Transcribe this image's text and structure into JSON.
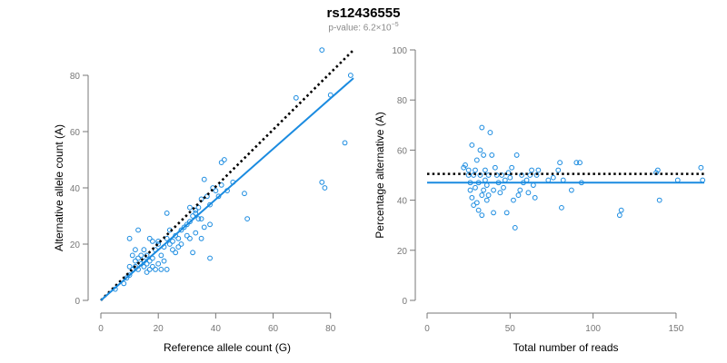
{
  "title": "rs12436555",
  "subtitle": {
    "prefix": "p-value: ",
    "mantissa": "6.2",
    "times": "×10",
    "exponent": "−5"
  },
  "colors": {
    "points": "#1a8be0",
    "fit": "#1a8be0",
    "reference": "#000000",
    "axis": "#777777"
  },
  "chart_data": [
    {
      "type": "scatter",
      "title": "",
      "xlabel": "Reference allele count (G)",
      "ylabel": "Alternative allele count (A)",
      "xlim": [
        0,
        88
      ],
      "ylim": [
        0,
        90
      ],
      "xticks": [
        0,
        20,
        40,
        60,
        80
      ],
      "yticks": [
        0,
        20,
        40,
        60,
        80
      ],
      "fit_line": {
        "label": "fitted",
        "x": [
          0,
          88
        ],
        "y": [
          0,
          79
        ]
      },
      "reference_line": {
        "label": "expected",
        "x": [
          0,
          88
        ],
        "y": [
          0,
          89
        ]
      },
      "points": [
        [
          5,
          4
        ],
        [
          8,
          6
        ],
        [
          9,
          8
        ],
        [
          10,
          9
        ],
        [
          10,
          12
        ],
        [
          11,
          11
        ],
        [
          11,
          16
        ],
        [
          12,
          14
        ],
        [
          12,
          12
        ],
        [
          13,
          15
        ],
        [
          13,
          11
        ],
        [
          14,
          13
        ],
        [
          14,
          16
        ],
        [
          15,
          12
        ],
        [
          15,
          14
        ],
        [
          15,
          18
        ],
        [
          16,
          10
        ],
        [
          16,
          13
        ],
        [
          16,
          16
        ],
        [
          17,
          11
        ],
        [
          17,
          14
        ],
        [
          17,
          22
        ],
        [
          18,
          12
        ],
        [
          18,
          15
        ],
        [
          19,
          18
        ],
        [
          19,
          11
        ],
        [
          20,
          13
        ],
        [
          20,
          20
        ],
        [
          21,
          11
        ],
        [
          21,
          16
        ],
        [
          22,
          19
        ],
        [
          22,
          14
        ],
        [
          23,
          22
        ],
        [
          23,
          11
        ],
        [
          24,
          20
        ],
        [
          24,
          25
        ],
        [
          25,
          21
        ],
        [
          25,
          18
        ],
        [
          26,
          23
        ],
        [
          26,
          17
        ],
        [
          27,
          19
        ],
        [
          27,
          22
        ],
        [
          28,
          20
        ],
        [
          28,
          25
        ],
        [
          29,
          26
        ],
        [
          30,
          27
        ],
        [
          30,
          23
        ],
        [
          31,
          28
        ],
        [
          31,
          22
        ],
        [
          32,
          30
        ],
        [
          32,
          17
        ],
        [
          33,
          24
        ],
        [
          33,
          31
        ],
        [
          34,
          29
        ],
        [
          34,
          33
        ],
        [
          35,
          29
        ],
        [
          35,
          22
        ],
        [
          36,
          26
        ],
        [
          37,
          37
        ],
        [
          38,
          34
        ],
        [
          39,
          40
        ],
        [
          40,
          39
        ],
        [
          41,
          37
        ],
        [
          42,
          41
        ],
        [
          42,
          49
        ],
        [
          43,
          50
        ],
        [
          44,
          39
        ],
        [
          12,
          18
        ],
        [
          13,
          25
        ],
        [
          10,
          22
        ],
        [
          20,
          21
        ],
        [
          18,
          21
        ],
        [
          23,
          31
        ],
        [
          31,
          33
        ],
        [
          33,
          32
        ],
        [
          35,
          36
        ],
        [
          36,
          43
        ],
        [
          38,
          27
        ],
        [
          38,
          15
        ],
        [
          46,
          42
        ],
        [
          50,
          38
        ],
        [
          51,
          29
        ],
        [
          68,
          72
        ],
        [
          77,
          89
        ],
        [
          77,
          42
        ],
        [
          78,
          40
        ],
        [
          80,
          73
        ],
        [
          85,
          56
        ],
        [
          87,
          80
        ]
      ]
    },
    {
      "type": "scatter",
      "title": "",
      "xlabel": "Total number of reads",
      "ylabel": "Percentage alternative (A)",
      "xlim": [
        0,
        167
      ],
      "ylim": [
        0,
        100
      ],
      "xticks": [
        0,
        50,
        100,
        150
      ],
      "yticks": [
        0,
        20,
        40,
        60,
        80,
        100
      ],
      "fit_line": {
        "label": "fitted",
        "x": [
          0,
          167
        ],
        "y": [
          47,
          47
        ]
      },
      "reference_line": {
        "label": "expected",
        "x": [
          0,
          167
        ],
        "y": [
          50.5,
          50.5
        ]
      },
      "points": [
        [
          22,
          53
        ],
        [
          23,
          54
        ],
        [
          25,
          50
        ],
        [
          25,
          52
        ],
        [
          26,
          47
        ],
        [
          26,
          44
        ],
        [
          27,
          62
        ],
        [
          27,
          41
        ],
        [
          28,
          38
        ],
        [
          28,
          50
        ],
        [
          29,
          45
        ],
        [
          29,
          52
        ],
        [
          30,
          56
        ],
        [
          30,
          39
        ],
        [
          31,
          36
        ],
        [
          31,
          47
        ],
        [
          32,
          60
        ],
        [
          32,
          50
        ],
        [
          33,
          69
        ],
        [
          33,
          42
        ],
        [
          33,
          34
        ],
        [
          34,
          44
        ],
        [
          34,
          58
        ],
        [
          35,
          48
        ],
        [
          35,
          52
        ],
        [
          36,
          40
        ],
        [
          36,
          46
        ],
        [
          37,
          42
        ],
        [
          37,
          50
        ],
        [
          38,
          67
        ],
        [
          39,
          58
        ],
        [
          40,
          35
        ],
        [
          40,
          44
        ],
        [
          41,
          53
        ],
        [
          42,
          50
        ],
        [
          43,
          47
        ],
        [
          44,
          43
        ],
        [
          45,
          50
        ],
        [
          46,
          45
        ],
        [
          47,
          48
        ],
        [
          48,
          35
        ],
        [
          49,
          51
        ],
        [
          50,
          49
        ],
        [
          51,
          53
        ],
        [
          52,
          40
        ],
        [
          53,
          29
        ],
        [
          54,
          58
        ],
        [
          55,
          42
        ],
        [
          56,
          44
        ],
        [
          57,
          50
        ],
        [
          58,
          47
        ],
        [
          60,
          48
        ],
        [
          61,
          43
        ],
        [
          62,
          50
        ],
        [
          63,
          52
        ],
        [
          64,
          46
        ],
        [
          65,
          41
        ],
        [
          66,
          50
        ],
        [
          67,
          52
        ],
        [
          73,
          48
        ],
        [
          76,
          49
        ],
        [
          79,
          52
        ],
        [
          80,
          55
        ],
        [
          81,
          37
        ],
        [
          82,
          48
        ],
        [
          87,
          44
        ],
        [
          90,
          55
        ],
        [
          92,
          55
        ],
        [
          93,
          47
        ],
        [
          116,
          34
        ],
        [
          117,
          36
        ],
        [
          138,
          51
        ],
        [
          139,
          52
        ],
        [
          140,
          40
        ],
        [
          151,
          48
        ],
        [
          165,
          53
        ],
        [
          166,
          48
        ]
      ]
    }
  ]
}
